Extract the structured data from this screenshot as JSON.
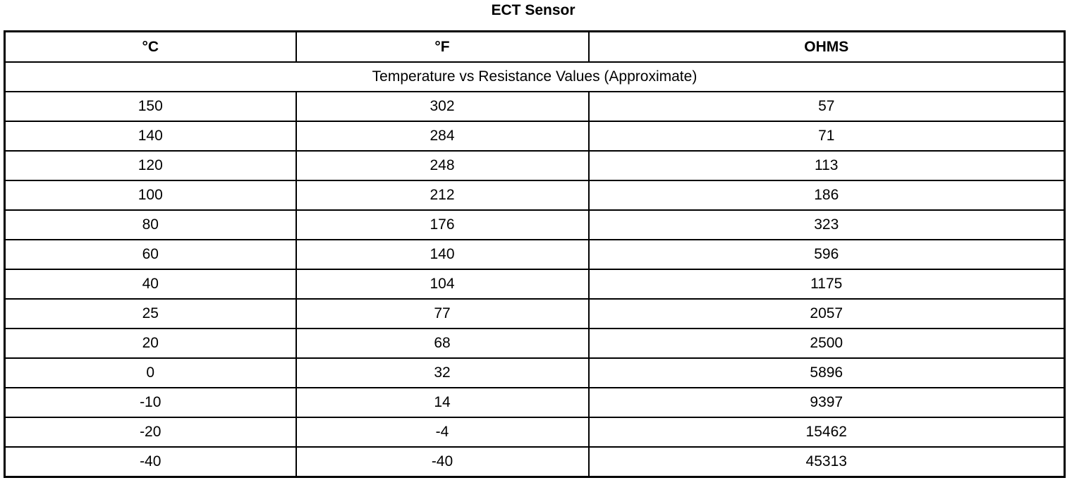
{
  "title": "ECT Sensor",
  "headers": [
    "°C",
    "°F",
    "OHMS"
  ],
  "subtitle": "Temperature vs Resistance Values (Approximate)",
  "rows": [
    [
      "150",
      "302",
      "57"
    ],
    [
      "140",
      "284",
      "71"
    ],
    [
      "120",
      "248",
      "113"
    ],
    [
      "100",
      "212",
      "186"
    ],
    [
      "80",
      "176",
      "323"
    ],
    [
      "60",
      "140",
      "596"
    ],
    [
      "40",
      "104",
      "1175"
    ],
    [
      "25",
      "77",
      "2057"
    ],
    [
      "20",
      "68",
      "2500"
    ],
    [
      "0",
      "32",
      "5896"
    ],
    [
      "-10",
      "14",
      "9397"
    ],
    [
      "-20",
      "-4",
      "15462"
    ],
    [
      "-40",
      "-40",
      "45313"
    ]
  ]
}
